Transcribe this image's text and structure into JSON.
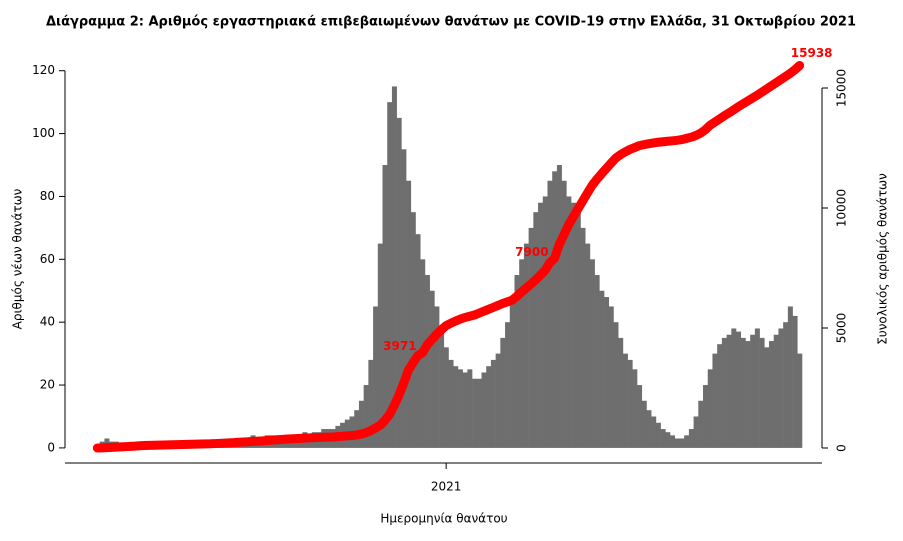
{
  "chart_data": {
    "type": "bar",
    "title": "Διάγραμμα 2: Αριθμός εργαστηριακά επιβεβαιωμένων θανάτων με COVID-19 στην Ελλάδα, 31 Οκτωβρίου 2021",
    "x_label": "Ημερομηνία θανάτου",
    "y_label": "Αριθμός νέων θανάτων",
    "y2_label": "Συνολικός αριθμός θανάτων",
    "categories": [
      null,
      null,
      null,
      null,
      null,
      null,
      null,
      null,
      null,
      null,
      null,
      null,
      null,
      null,
      null,
      null,
      null,
      null,
      null,
      null,
      null,
      null,
      null,
      null,
      null,
      null,
      null,
      null,
      null,
      null,
      null,
      null,
      null,
      null,
      null,
      null,
      null,
      null,
      null,
      null,
      null,
      null,
      null,
      null,
      null,
      null,
      null,
      null,
      null,
      null,
      null,
      null,
      null,
      null,
      null,
      null,
      null,
      null,
      null,
      null,
      null,
      null,
      null,
      null,
      null,
      null,
      null,
      null,
      null,
      null,
      null,
      null,
      null,
      null,
      "2021",
      null,
      null,
      null,
      null,
      null,
      null,
      null,
      null,
      null,
      null,
      null,
      null,
      null,
      null,
      null,
      null,
      null,
      null,
      null,
      null,
      null,
      null,
      null,
      null,
      null,
      null,
      null,
      null,
      null,
      null,
      null,
      null,
      null,
      null,
      null,
      null,
      null,
      null,
      null,
      null,
      null,
      null,
      null,
      null,
      null,
      null,
      null,
      null,
      null,
      null,
      null,
      null,
      null,
      null,
      null,
      null,
      null,
      null,
      null,
      null,
      null,
      null,
      null,
      null,
      null,
      null,
      null,
      null,
      null,
      null,
      null,
      null,
      null,
      null,
      null
    ],
    "series": [
      {
        "type": "bar",
        "color": "#6e6e6e",
        "values": [
          1,
          2,
          3,
          2,
          2,
          1,
          1,
          1,
          1,
          1,
          1,
          0,
          0,
          1,
          0,
          0,
          0,
          1,
          0,
          1,
          1,
          1,
          1,
          1,
          1,
          2,
          2,
          2,
          2,
          3,
          3,
          3,
          3,
          4,
          3,
          3,
          4,
          4,
          4,
          4,
          4,
          4,
          3,
          4,
          5,
          4,
          5,
          5,
          6,
          6,
          6,
          7,
          8,
          9,
          10,
          12,
          15,
          20,
          28,
          45,
          65,
          90,
          110,
          115,
          105,
          95,
          85,
          75,
          68,
          60,
          55,
          50,
          45,
          38,
          32,
          28,
          26,
          25,
          24,
          25,
          22,
          22,
          24,
          26,
          28,
          30,
          35,
          40,
          48,
          55,
          60,
          65,
          70,
          75,
          78,
          80,
          85,
          88,
          90,
          85,
          80,
          78,
          75,
          70,
          65,
          60,
          55,
          50,
          48,
          45,
          40,
          35,
          30,
          28,
          25,
          20,
          15,
          12,
          10,
          8,
          6,
          5,
          4,
          3,
          3,
          4,
          6,
          10,
          15,
          20,
          25,
          30,
          33,
          35,
          36,
          38,
          37,
          35,
          34,
          36,
          38,
          35,
          32,
          34,
          36,
          38,
          40,
          45,
          42,
          30
        ]
      },
      {
        "type": "line",
        "axis": "y2",
        "color": "#ff0000",
        "values": [
          0,
          5,
          15,
          25,
          35,
          45,
          55,
          70,
          80,
          95,
          105,
          110,
          115,
          120,
          125,
          130,
          135,
          140,
          145,
          150,
          155,
          160,
          165,
          170,
          175,
          185,
          195,
          205,
          215,
          225,
          240,
          250,
          260,
          275,
          285,
          295,
          310,
          325,
          340,
          355,
          370,
          380,
          390,
          400,
          410,
          420,
          430,
          440,
          450,
          455,
          460,
          475,
          490,
          505,
          520,
          540,
          580,
          640,
          720,
          830,
          950,
          1150,
          1400,
          1780,
          2200,
          2700,
          3250,
          3560,
          3850,
          3971,
          4300,
          4520,
          4740,
          4930,
          5100,
          5200,
          5290,
          5370,
          5440,
          5490,
          5540,
          5620,
          5700,
          5780,
          5860,
          5940,
          6020,
          6090,
          6160,
          6320,
          6500,
          6660,
          6830,
          7010,
          7200,
          7400,
          7720,
          7900,
          8480,
          8890,
          9300,
          9640,
          9970,
          10300,
          10630,
          10950,
          11200,
          11430,
          11650,
          11870,
          12080,
          12220,
          12340,
          12440,
          12520,
          12600,
          12640,
          12680,
          12710,
          12740,
          12760,
          12780,
          12800,
          12820,
          12850,
          12900,
          12950,
          13020,
          13120,
          13260,
          13450,
          13580,
          13710,
          13840,
          13960,
          14090,
          14220,
          14340,
          14460,
          14580,
          14700,
          14830,
          14960,
          15090,
          15220,
          15350,
          15480,
          15610,
          15760,
          15938
        ],
        "value_labels": [
          null,
          null,
          null,
          null,
          null,
          null,
          null,
          null,
          null,
          null,
          null,
          null,
          null,
          null,
          null,
          null,
          null,
          null,
          null,
          null,
          null,
          null,
          null,
          null,
          null,
          null,
          null,
          null,
          null,
          null,
          null,
          null,
          null,
          null,
          null,
          null,
          null,
          null,
          null,
          null,
          null,
          null,
          null,
          null,
          null,
          null,
          null,
          null,
          null,
          null,
          null,
          null,
          null,
          null,
          null,
          null,
          null,
          null,
          null,
          null,
          null,
          null,
          null,
          null,
          null,
          null,
          null,
          null,
          null,
          "3971",
          null,
          null,
          null,
          null,
          null,
          null,
          null,
          null,
          null,
          null,
          null,
          null,
          null,
          null,
          null,
          null,
          null,
          null,
          null,
          null,
          null,
          null,
          null,
          null,
          null,
          null,
          null,
          "7900",
          null,
          null,
          null,
          null,
          null,
          null,
          null,
          null,
          null,
          null,
          null,
          null,
          null,
          null,
          null,
          null,
          null,
          null,
          null,
          null,
          null,
          null,
          null,
          null,
          null,
          null,
          null,
          null,
          null,
          null,
          null,
          null,
          null,
          null,
          null,
          null,
          null,
          null,
          null,
          null,
          null,
          null,
          null,
          null,
          null,
          null,
          null,
          null,
          null,
          null,
          null,
          "15938"
        ]
      }
    ],
    "ylim": [
      -4.8,
      125
    ],
    "yticks": [
      0,
      20,
      40,
      60,
      80,
      100,
      120
    ],
    "y2lim": [
      -625,
      16375
    ],
    "y2ticks": [
      0,
      5000,
      10000,
      15000
    ],
    "grid": false
  }
}
